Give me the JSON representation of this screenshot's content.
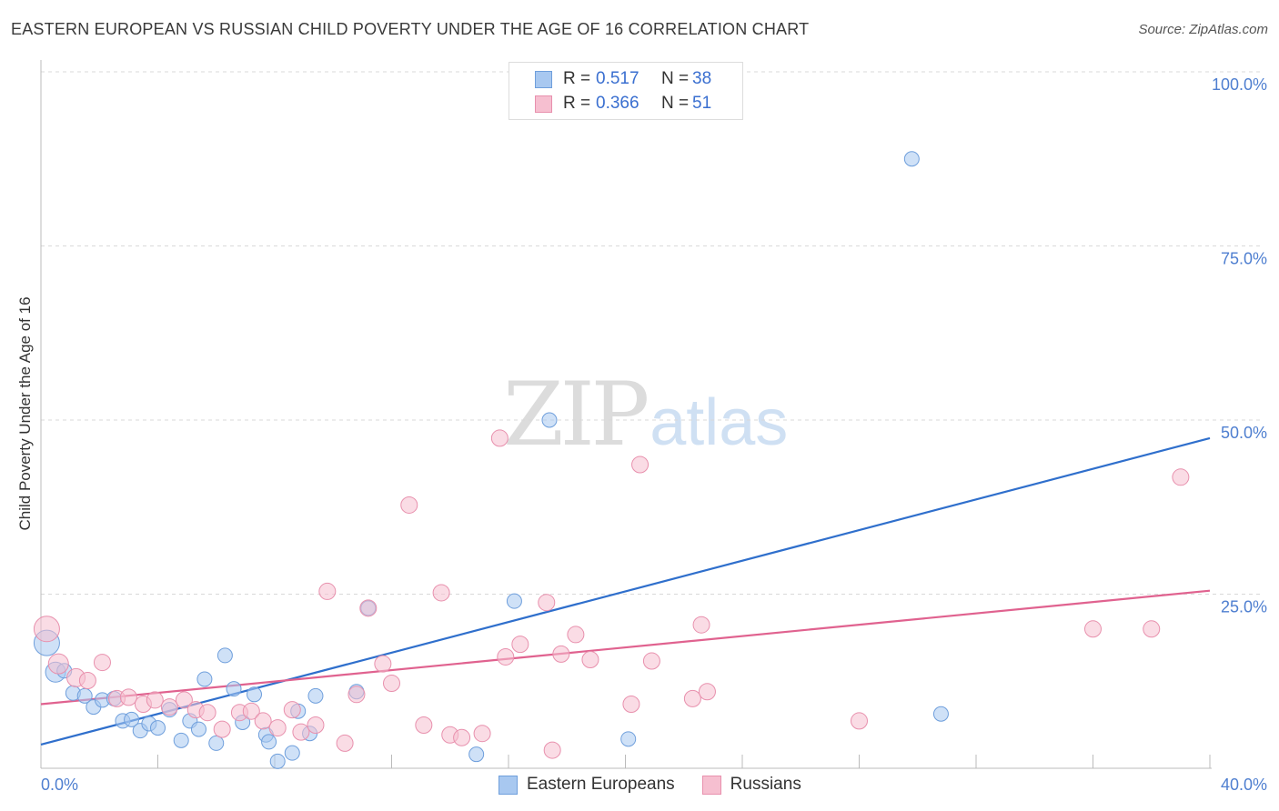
{
  "title": "EASTERN EUROPEAN VS RUSSIAN CHILD POVERTY UNDER THE AGE OF 16 CORRELATION CHART",
  "source": "Source: ZipAtlas.com",
  "watermark": {
    "zip": "ZIP",
    "atlas": "atlas"
  },
  "legend": {
    "rows": [
      {
        "r_label": "R =",
        "r_value": "0.517",
        "n_label": "N =",
        "n_value": "38"
      },
      {
        "r_label": "R =",
        "r_value": "0.366",
        "n_label": "N =",
        "n_value": "51"
      }
    ]
  },
  "bottom_legend": {
    "eastern": "Eastern Europeans",
    "russians": "Russians"
  },
  "colors": {
    "eastern_fill": "#a8c8f0",
    "eastern_stroke": "#6f9fdc",
    "eastern_line": "#2f6fcc",
    "russian_fill": "#f6bfd0",
    "russian_stroke": "#e890ad",
    "russian_line": "#e0628f",
    "grid": "#d9d9d9",
    "axis_text": "#4f7fd0"
  },
  "chart_data": {
    "type": "scatter",
    "title": "EASTERN EUROPEAN VS RUSSIAN CHILD POVERTY UNDER THE AGE OF 16 CORRELATION CHART",
    "xlabel": "",
    "ylabel": "Child Poverty Under the Age of 16",
    "xlim": [
      0,
      40
    ],
    "ylim": [
      0,
      100
    ],
    "x_tick_labels": [
      {
        "value": 0,
        "label": "0.0%"
      },
      {
        "value": 40,
        "label": "40.0%"
      }
    ],
    "y_tick_labels": [
      {
        "value": 25,
        "label": "25.0%"
      },
      {
        "value": 50,
        "label": "50.0%"
      },
      {
        "value": 75,
        "label": "75.0%"
      },
      {
        "value": 100,
        "label": "100.0%"
      }
    ],
    "series": [
      {
        "name": "Eastern Europeans",
        "r": 0.517,
        "n": 38,
        "trend": {
          "x": [
            0,
            40
          ],
          "y": [
            3.4,
            47.4
          ]
        },
        "points": [
          {
            "x": 0.2,
            "y": 18.0,
            "s": 14
          },
          {
            "x": 0.5,
            "y": 13.8,
            "s": 11
          },
          {
            "x": 0.8,
            "y": 14.0,
            "s": 8
          },
          {
            "x": 1.1,
            "y": 10.8,
            "s": 8
          },
          {
            "x": 1.5,
            "y": 10.4,
            "s": 8
          },
          {
            "x": 1.8,
            "y": 8.8,
            "s": 8
          },
          {
            "x": 2.1,
            "y": 9.8,
            "s": 8
          },
          {
            "x": 2.5,
            "y": 10.0,
            "s": 8
          },
          {
            "x": 2.8,
            "y": 6.8,
            "s": 8
          },
          {
            "x": 3.1,
            "y": 7.0,
            "s": 8
          },
          {
            "x": 3.4,
            "y": 5.4,
            "s": 8
          },
          {
            "x": 3.7,
            "y": 6.4,
            "s": 8
          },
          {
            "x": 4.0,
            "y": 5.8,
            "s": 8
          },
          {
            "x": 4.4,
            "y": 8.4,
            "s": 8
          },
          {
            "x": 4.8,
            "y": 4.0,
            "s": 8
          },
          {
            "x": 5.1,
            "y": 6.8,
            "s": 8
          },
          {
            "x": 5.4,
            "y": 5.6,
            "s": 8
          },
          {
            "x": 5.6,
            "y": 12.8,
            "s": 8
          },
          {
            "x": 6.0,
            "y": 3.6,
            "s": 8
          },
          {
            "x": 6.3,
            "y": 16.2,
            "s": 8
          },
          {
            "x": 6.6,
            "y": 11.4,
            "s": 8
          },
          {
            "x": 6.9,
            "y": 6.6,
            "s": 8
          },
          {
            "x": 7.3,
            "y": 10.6,
            "s": 8
          },
          {
            "x": 7.7,
            "y": 4.8,
            "s": 8
          },
          {
            "x": 7.8,
            "y": 3.8,
            "s": 8
          },
          {
            "x": 8.1,
            "y": 1.0,
            "s": 8
          },
          {
            "x": 8.6,
            "y": 2.2,
            "s": 8
          },
          {
            "x": 8.8,
            "y": 8.2,
            "s": 8
          },
          {
            "x": 9.2,
            "y": 5.0,
            "s": 8
          },
          {
            "x": 9.4,
            "y": 10.4,
            "s": 8
          },
          {
            "x": 10.8,
            "y": 11.0,
            "s": 8
          },
          {
            "x": 11.2,
            "y": 23.0,
            "s": 8
          },
          {
            "x": 14.9,
            "y": 2.0,
            "s": 8
          },
          {
            "x": 16.2,
            "y": 24.0,
            "s": 8
          },
          {
            "x": 17.4,
            "y": 50.0,
            "s": 8
          },
          {
            "x": 20.1,
            "y": 4.2,
            "s": 8
          },
          {
            "x": 29.8,
            "y": 87.5,
            "s": 8
          },
          {
            "x": 30.8,
            "y": 7.8,
            "s": 8
          }
        ]
      },
      {
        "name": "Russians",
        "r": 0.366,
        "n": 51,
        "trend": {
          "x": [
            0,
            40
          ],
          "y": [
            9.2,
            25.5
          ]
        },
        "points": [
          {
            "x": 0.2,
            "y": 20.0,
            "s": 14
          },
          {
            "x": 0.6,
            "y": 15.0,
            "s": 11
          },
          {
            "x": 1.2,
            "y": 13.0,
            "s": 10
          },
          {
            "x": 1.6,
            "y": 12.6,
            "s": 9
          },
          {
            "x": 2.1,
            "y": 15.2,
            "s": 9
          },
          {
            "x": 2.6,
            "y": 10.0,
            "s": 9
          },
          {
            "x": 3.0,
            "y": 10.2,
            "s": 9
          },
          {
            "x": 3.5,
            "y": 9.2,
            "s": 9
          },
          {
            "x": 3.9,
            "y": 9.8,
            "s": 9
          },
          {
            "x": 4.4,
            "y": 8.8,
            "s": 9
          },
          {
            "x": 4.9,
            "y": 9.8,
            "s": 9
          },
          {
            "x": 5.3,
            "y": 8.4,
            "s": 9
          },
          {
            "x": 5.7,
            "y": 8.0,
            "s": 9
          },
          {
            "x": 6.2,
            "y": 5.6,
            "s": 9
          },
          {
            "x": 6.8,
            "y": 8.0,
            "s": 9
          },
          {
            "x": 7.2,
            "y": 8.2,
            "s": 9
          },
          {
            "x": 7.6,
            "y": 6.8,
            "s": 9
          },
          {
            "x": 8.1,
            "y": 5.8,
            "s": 9
          },
          {
            "x": 8.6,
            "y": 8.4,
            "s": 9
          },
          {
            "x": 8.9,
            "y": 5.2,
            "s": 9
          },
          {
            "x": 9.4,
            "y": 6.2,
            "s": 9
          },
          {
            "x": 9.8,
            "y": 25.4,
            "s": 9
          },
          {
            "x": 10.4,
            "y": 3.6,
            "s": 9
          },
          {
            "x": 10.8,
            "y": 10.6,
            "s": 9
          },
          {
            "x": 11.2,
            "y": 23.0,
            "s": 9
          },
          {
            "x": 11.7,
            "y": 15.0,
            "s": 9
          },
          {
            "x": 12.0,
            "y": 12.2,
            "s": 9
          },
          {
            "x": 12.6,
            "y": 37.8,
            "s": 9
          },
          {
            "x": 13.1,
            "y": 6.2,
            "s": 9
          },
          {
            "x": 13.7,
            "y": 25.2,
            "s": 9
          },
          {
            "x": 14.0,
            "y": 4.8,
            "s": 9
          },
          {
            "x": 14.4,
            "y": 4.4,
            "s": 9
          },
          {
            "x": 15.1,
            "y": 5.0,
            "s": 9
          },
          {
            "x": 15.7,
            "y": 47.4,
            "s": 9
          },
          {
            "x": 15.9,
            "y": 16.0,
            "s": 9
          },
          {
            "x": 16.4,
            "y": 17.8,
            "s": 9
          },
          {
            "x": 17.3,
            "y": 23.8,
            "s": 9
          },
          {
            "x": 17.5,
            "y": 2.6,
            "s": 9
          },
          {
            "x": 17.8,
            "y": 16.4,
            "s": 9
          },
          {
            "x": 18.3,
            "y": 19.2,
            "s": 9
          },
          {
            "x": 18.8,
            "y": 15.6,
            "s": 9
          },
          {
            "x": 20.2,
            "y": 9.2,
            "s": 9
          },
          {
            "x": 20.5,
            "y": 43.6,
            "s": 9
          },
          {
            "x": 20.9,
            "y": 15.4,
            "s": 9
          },
          {
            "x": 22.3,
            "y": 10.0,
            "s": 9
          },
          {
            "x": 22.6,
            "y": 20.6,
            "s": 9
          },
          {
            "x": 22.8,
            "y": 11.0,
            "s": 9
          },
          {
            "x": 28.0,
            "y": 6.8,
            "s": 9
          },
          {
            "x": 36.0,
            "y": 20.0,
            "s": 9
          },
          {
            "x": 38.0,
            "y": 20.0,
            "s": 9
          },
          {
            "x": 39.0,
            "y": 41.8,
            "s": 9
          }
        ]
      }
    ]
  }
}
